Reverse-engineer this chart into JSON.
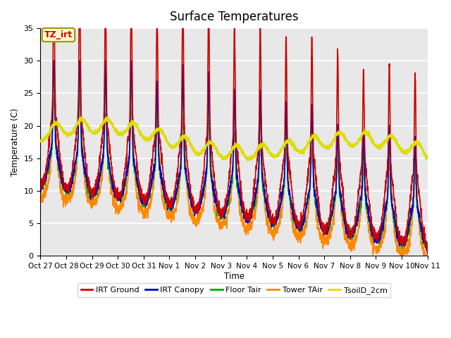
{
  "title": "Surface Temperatures",
  "ylabel": "Temperature (C)",
  "xlabel": "Time",
  "annotation_text": "TZ_irt",
  "annotation_color": "#cc0000",
  "annotation_bg": "#ffffcc",
  "annotation_border": "#999900",
  "ylim": [
    0,
    35
  ],
  "yticks": [
    0,
    5,
    10,
    15,
    20,
    25,
    30,
    35
  ],
  "x_labels": [
    "Oct 27",
    "Oct 28",
    "Oct 29",
    "Oct 30",
    "Oct 31",
    "Nov 1",
    "Nov 2",
    "Nov 3",
    "Nov 4",
    "Nov 5",
    "Nov 6",
    "Nov 7",
    "Nov 8",
    "Nov 9",
    "Nov 10",
    "Nov 11"
  ],
  "series": {
    "IRT Ground": {
      "color": "#cc0000",
      "lw": 1.2
    },
    "IRT Canopy": {
      "color": "#0000cc",
      "lw": 1.2
    },
    "Floor Tair": {
      "color": "#00aa00",
      "lw": 1.2
    },
    "Tower TAir": {
      "color": "#ff8800",
      "lw": 1.2
    },
    "TsoilD_2cm": {
      "color": "#dddd00",
      "lw": 1.8
    }
  },
  "background_color": "#e8e8e8",
  "grid_color": "#ffffff",
  "title_fontsize": 12,
  "figsize": [
    6.4,
    4.8
  ],
  "dpi": 100
}
